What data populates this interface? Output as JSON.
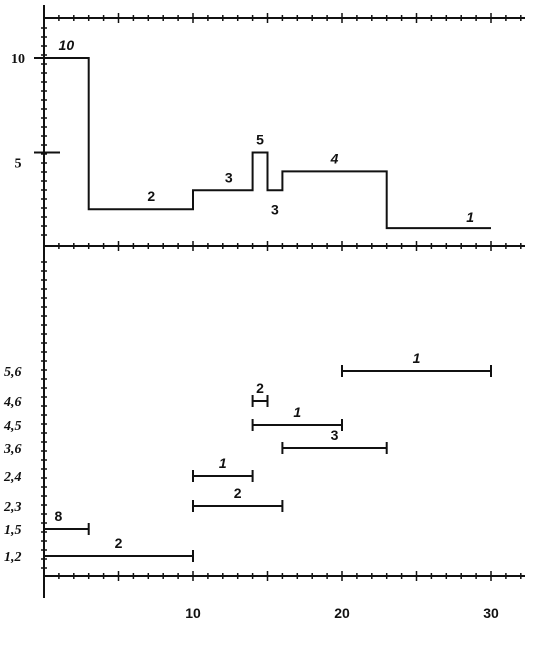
{
  "chart_data": {
    "type": "step-and-interval",
    "x_ticks": [
      "10",
      "20",
      "30"
    ],
    "top_panel": {
      "y_ticks": [
        "10",
        "5"
      ],
      "steps": [
        {
          "x0": 0,
          "x1": 3,
          "y": 10,
          "label": "10"
        },
        {
          "x0": 3,
          "x1": 10,
          "y": 2,
          "label": "2"
        },
        {
          "x0": 10,
          "x1": 14,
          "y": 3,
          "label": "3"
        },
        {
          "x0": 14,
          "x1": 15,
          "y": 5,
          "label": "5"
        },
        {
          "x0": 15,
          "x1": 16,
          "y": 3,
          "label": "3"
        },
        {
          "x0": 16,
          "x1": 23,
          "y": 4,
          "label": "4"
        },
        {
          "x0": 23,
          "x1": 30,
          "y": 1,
          "label": "1"
        }
      ]
    },
    "bottom_panel": {
      "intervals": [
        {
          "row": "1,2",
          "x0": 0,
          "x1": 10,
          "label": "2"
        },
        {
          "row": "1,5",
          "x0": 0,
          "x1": 3,
          "label": "8"
        },
        {
          "row": "2,3",
          "x0": 10,
          "x1": 16,
          "label": "2"
        },
        {
          "row": "2,4",
          "x0": 10,
          "x1": 14,
          "label": "1"
        },
        {
          "row": "3,6",
          "x0": 16,
          "x1": 23,
          "label": "3"
        },
        {
          "row": "4,5",
          "x0": 14,
          "x1": 20,
          "label": "1"
        },
        {
          "row": "4,6",
          "x0": 14,
          "x1": 15,
          "label": "2"
        },
        {
          "row": "5,6",
          "x0": 20,
          "x1": 30,
          "label": "1"
        }
      ]
    }
  }
}
